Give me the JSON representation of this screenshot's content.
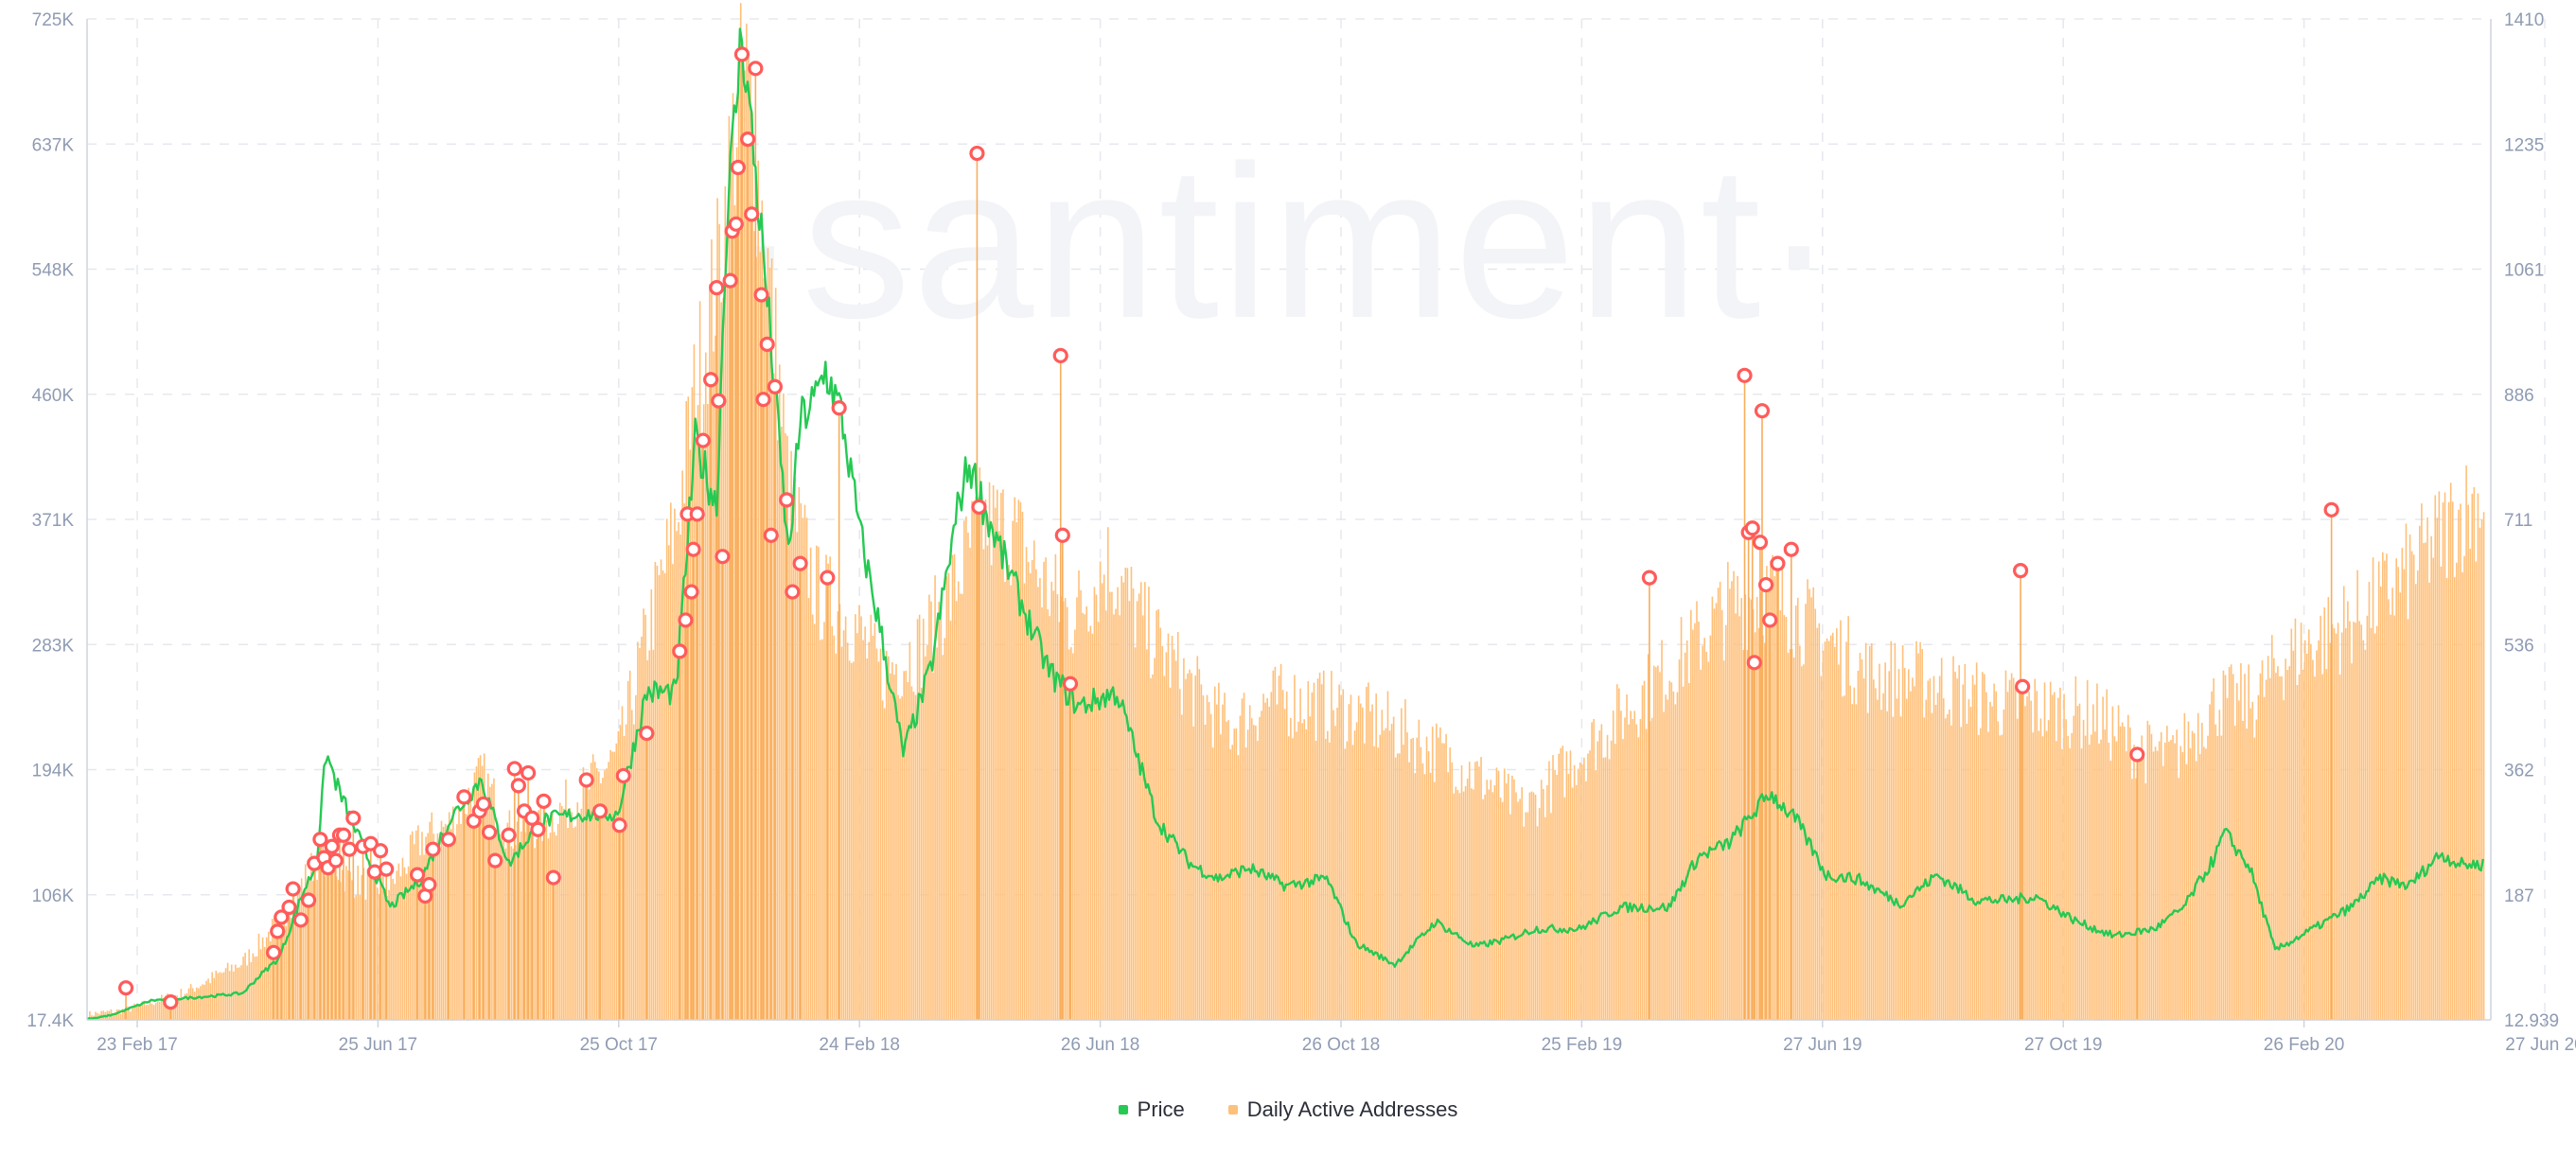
{
  "watermark": "·santiment·",
  "colors": {
    "price": "#26c953",
    "daa": "#ffc07a",
    "daa_stroke": "#f7ad5c",
    "anomaly": "#ff5b5b",
    "grid": "#e6e8ee",
    "axis_text": "#8f9bb3"
  },
  "chart_data": {
    "type": "bar+line",
    "title": "",
    "x_ticks": [
      "23 Feb 17",
      "25 Jun 17",
      "25 Oct 17",
      "24 Feb 18",
      "26 Jun 18",
      "26 Oct 18",
      "25 Feb 19",
      "27 Jun 19",
      "27 Oct 19",
      "26 Feb 20",
      "27 Jun 20"
    ],
    "y_left_ticks": [
      "725K",
      "637K",
      "548K",
      "460K",
      "371K",
      "283K",
      "194K",
      "106K",
      "17.4K"
    ],
    "y_right_ticks": [
      "1410",
      "1235",
      "1061",
      "886",
      "711",
      "536",
      "362",
      "187",
      "12.939"
    ],
    "y_left_range": [
      17400,
      725000
    ],
    "y_right_range": [
      12.939,
      1410
    ],
    "grid": true,
    "legend_position": "bottom-center",
    "series": [
      {
        "name": "Price",
        "axis": "right",
        "color": "#26c953",
        "points": [
          [
            "2017-02-10",
            13
          ],
          [
            "2017-02-23",
            20
          ],
          [
            "2017-03-15",
            40
          ],
          [
            "2017-04-10",
            45
          ],
          [
            "2017-05-01",
            50
          ],
          [
            "2017-05-10",
            75
          ],
          [
            "2017-05-20",
            100
          ],
          [
            "2017-06-01",
            190
          ],
          [
            "2017-06-08",
            230
          ],
          [
            "2017-06-13",
            385
          ],
          [
            "2017-06-20",
            330
          ],
          [
            "2017-07-01",
            260
          ],
          [
            "2017-07-16",
            170
          ],
          [
            "2017-08-01",
            210
          ],
          [
            "2017-08-15",
            290
          ],
          [
            "2017-09-01",
            350
          ],
          [
            "2017-09-15",
            230
          ],
          [
            "2017-10-01",
            290
          ],
          [
            "2017-10-20",
            300
          ],
          [
            "2017-11-10",
            300
          ],
          [
            "2017-11-25",
            470
          ],
          [
            "2017-12-10",
            470
          ],
          [
            "2017-12-20",
            820
          ],
          [
            "2017-12-31",
            730
          ],
          [
            "2018-01-05",
            1120
          ],
          [
            "2018-01-13",
            1395
          ],
          [
            "2018-01-25",
            1050
          ],
          [
            "2018-02-06",
            660
          ],
          [
            "2018-02-12",
            850
          ],
          [
            "2018-02-20",
            880
          ],
          [
            "2018-02-25",
            920
          ],
          [
            "2018-03-05",
            860
          ],
          [
            "2018-03-15",
            690
          ],
          [
            "2018-03-25",
            560
          ],
          [
            "2018-04-06",
            385
          ],
          [
            "2018-04-20",
            500
          ],
          [
            "2018-05-05",
            740
          ],
          [
            "2018-05-10",
            790
          ],
          [
            "2018-05-20",
            710
          ],
          [
            "2018-06-05",
            600
          ],
          [
            "2018-06-20",
            500
          ],
          [
            "2018-07-05",
            450
          ],
          [
            "2018-07-25",
            470
          ],
          [
            "2018-08-15",
            290
          ],
          [
            "2018-09-01",
            230
          ],
          [
            "2018-09-15",
            210
          ],
          [
            "2018-10-01",
            225
          ],
          [
            "2018-10-20",
            200
          ],
          [
            "2018-11-10",
            210
          ],
          [
            "2018-11-25",
            120
          ],
          [
            "2018-12-15",
            90
          ],
          [
            "2019-01-05",
            150
          ],
          [
            "2019-01-25",
            115
          ],
          [
            "2019-02-10",
            125
          ],
          [
            "2019-02-25",
            140
          ],
          [
            "2019-03-20",
            140
          ],
          [
            "2019-04-10",
            170
          ],
          [
            "2019-05-05",
            170
          ],
          [
            "2019-05-20",
            240
          ],
          [
            "2019-06-05",
            260
          ],
          [
            "2019-06-26",
            330
          ],
          [
            "2019-07-10",
            290
          ],
          [
            "2019-07-25",
            215
          ],
          [
            "2019-08-10",
            210
          ],
          [
            "2019-09-01",
            175
          ],
          [
            "2019-09-20",
            215
          ],
          [
            "2019-10-10",
            180
          ],
          [
            "2019-10-27",
            180
          ],
          [
            "2019-11-10",
            185
          ],
          [
            "2019-12-01",
            150
          ],
          [
            "2019-12-20",
            130
          ],
          [
            "2020-01-10",
            140
          ],
          [
            "2020-01-25",
            170
          ],
          [
            "2020-02-10",
            240
          ],
          [
            "2020-02-15",
            275
          ],
          [
            "2020-02-28",
            225
          ],
          [
            "2020-03-12",
            110
          ],
          [
            "2020-03-25",
            130
          ],
          [
            "2020-04-20",
            170
          ],
          [
            "2020-05-05",
            210
          ],
          [
            "2020-05-20",
            200
          ],
          [
            "2020-06-05",
            245
          ],
          [
            "2020-06-15",
            230
          ],
          [
            "2020-06-27",
            230
          ]
        ]
      },
      {
        "name": "Daily Active Addresses",
        "axis": "left",
        "color": "#ffc07a",
        "points": [
          [
            "2017-02-10",
            22000
          ],
          [
            "2017-03-01",
            25000
          ],
          [
            "2017-04-01",
            38000
          ],
          [
            "2017-05-01",
            60000
          ],
          [
            "2017-05-20",
            90000
          ],
          [
            "2017-06-10",
            140000
          ],
          [
            "2017-06-25",
            120000
          ],
          [
            "2017-07-15",
            115000
          ],
          [
            "2017-08-01",
            150000
          ],
          [
            "2017-08-15",
            160000
          ],
          [
            "2017-09-01",
            195000
          ],
          [
            "2017-09-15",
            155000
          ],
          [
            "2017-10-01",
            160000
          ],
          [
            "2017-10-20",
            180000
          ],
          [
            "2017-11-10",
            210000
          ],
          [
            "2017-11-25",
            300000
          ],
          [
            "2017-12-10",
            380000
          ],
          [
            "2017-12-20",
            480000
          ],
          [
            "2017-12-31",
            560000
          ],
          [
            "2018-01-10",
            680000
          ],
          [
            "2018-01-15",
            700000
          ],
          [
            "2018-01-25",
            580000
          ],
          [
            "2018-02-06",
            400000
          ],
          [
            "2018-02-20",
            330000
          ],
          [
            "2018-03-10",
            310000
          ],
          [
            "2018-03-25",
            270000
          ],
          [
            "2018-04-15",
            290000
          ],
          [
            "2018-05-01",
            330000
          ],
          [
            "2018-05-15",
            380000
          ],
          [
            "2018-06-01",
            375000
          ],
          [
            "2018-06-15",
            340000
          ],
          [
            "2018-07-01",
            310000
          ],
          [
            "2018-07-20",
            350000
          ],
          [
            "2018-08-10",
            300000
          ],
          [
            "2018-09-01",
            260000
          ],
          [
            "2018-09-20",
            230000
          ],
          [
            "2018-10-10",
            250000
          ],
          [
            "2018-11-01",
            250000
          ],
          [
            "2018-11-25",
            240000
          ],
          [
            "2018-12-15",
            230000
          ],
          [
            "2019-01-10",
            210000
          ],
          [
            "2019-02-01",
            190000
          ],
          [
            "2019-02-20",
            170000
          ],
          [
            "2019-03-15",
            205000
          ],
          [
            "2019-04-10",
            240000
          ],
          [
            "2019-05-10",
            280000
          ],
          [
            "2019-06-05",
            320000
          ],
          [
            "2019-06-27",
            330000
          ],
          [
            "2019-07-20",
            300000
          ],
          [
            "2019-08-15",
            270000
          ],
          [
            "2019-09-15",
            265000
          ],
          [
            "2019-10-15",
            250000
          ],
          [
            "2019-11-10",
            245000
          ],
          [
            "2019-12-10",
            240000
          ],
          [
            "2020-01-01",
            215000
          ],
          [
            "2020-01-20",
            210000
          ],
          [
            "2020-02-10",
            250000
          ],
          [
            "2020-03-01",
            250000
          ],
          [
            "2020-03-15",
            280000
          ],
          [
            "2020-04-10",
            300000
          ],
          [
            "2020-05-01",
            320000
          ],
          [
            "2020-05-20",
            345000
          ],
          [
            "2020-06-10",
            380000
          ],
          [
            "2020-06-27",
            400000
          ]
        ]
      }
    ],
    "anomalies_daa": [
      [
        "2017-03-02",
        40000
      ],
      [
        "2017-03-25",
        30000
      ],
      [
        "2017-05-17",
        65000
      ],
      [
        "2017-05-19",
        80000
      ],
      [
        "2017-05-21",
        90000
      ],
      [
        "2017-05-25",
        97000
      ],
      [
        "2017-05-27",
        110000
      ],
      [
        "2017-05-31",
        88000
      ],
      [
        "2017-06-04",
        102000
      ],
      [
        "2017-06-07",
        128000
      ],
      [
        "2017-06-10",
        145000
      ],
      [
        "2017-06-12",
        132000
      ],
      [
        "2017-06-14",
        125000
      ],
      [
        "2017-06-16",
        140000
      ],
      [
        "2017-06-18",
        130000
      ],
      [
        "2017-06-20",
        148000
      ],
      [
        "2017-06-22",
        148000
      ],
      [
        "2017-06-25",
        138000
      ],
      [
        "2017-06-27",
        160000
      ],
      [
        "2017-07-02",
        140000
      ],
      [
        "2017-07-06",
        142000
      ],
      [
        "2017-07-08",
        122000
      ],
      [
        "2017-07-11",
        137000
      ],
      [
        "2017-07-14",
        124000
      ],
      [
        "2017-07-30",
        120000
      ],
      [
        "2017-08-03",
        105000
      ],
      [
        "2017-08-05",
        113000
      ],
      [
        "2017-08-07",
        138000
      ],
      [
        "2017-08-15",
        145000
      ],
      [
        "2017-08-23",
        175000
      ],
      [
        "2017-08-28",
        158000
      ],
      [
        "2017-08-31",
        165000
      ],
      [
        "2017-09-02",
        170000
      ],
      [
        "2017-09-05",
        150000
      ],
      [
        "2017-09-08",
        130000
      ],
      [
        "2017-09-15",
        148000
      ],
      [
        "2017-09-18",
        195000
      ],
      [
        "2017-09-20",
        183000
      ],
      [
        "2017-09-23",
        165000
      ],
      [
        "2017-09-25",
        192000
      ],
      [
        "2017-09-27",
        160000
      ],
      [
        "2017-09-30",
        152000
      ],
      [
        "2017-10-03",
        172000
      ],
      [
        "2017-10-08",
        118000
      ],
      [
        "2017-10-25",
        187000
      ],
      [
        "2017-11-01",
        165000
      ],
      [
        "2017-11-11",
        155000
      ],
      [
        "2017-11-13",
        190000
      ],
      [
        "2017-11-25",
        220000
      ],
      [
        "2017-12-12",
        278000
      ],
      [
        "2017-12-15",
        300000
      ],
      [
        "2017-12-16",
        375000
      ],
      [
        "2017-12-18",
        320000
      ],
      [
        "2017-12-19",
        350000
      ],
      [
        "2017-12-21",
        375000
      ],
      [
        "2017-12-24",
        427000
      ],
      [
        "2017-12-28",
        470000
      ],
      [
        "2017-12-31",
        535000
      ],
      [
        "2018-01-01",
        455000
      ],
      [
        "2018-01-03",
        345000
      ],
      [
        "2018-01-07",
        540000
      ],
      [
        "2018-01-08",
        575000
      ],
      [
        "2018-01-10",
        580000
      ],
      [
        "2018-01-11",
        620000
      ],
      [
        "2018-01-13",
        700000
      ],
      [
        "2018-01-16",
        640000
      ],
      [
        "2018-01-18",
        587000
      ],
      [
        "2018-01-20",
        690000
      ],
      [
        "2018-01-23",
        530000
      ],
      [
        "2018-01-24",
        456000
      ],
      [
        "2018-01-26",
        495000
      ],
      [
        "2018-01-28",
        360000
      ],
      [
        "2018-01-30",
        465000
      ],
      [
        "2018-02-05",
        385000
      ],
      [
        "2018-02-08",
        320000
      ],
      [
        "2018-02-12",
        340000
      ],
      [
        "2018-02-26",
        330000
      ],
      [
        "2018-03-04",
        450000
      ],
      [
        "2018-05-14",
        630000
      ],
      [
        "2018-05-15",
        380000
      ],
      [
        "2018-06-26",
        487000
      ],
      [
        "2018-06-27",
        360000
      ],
      [
        "2018-07-01",
        255000
      ],
      [
        "2019-04-25",
        330000
      ],
      [
        "2019-06-13",
        473000
      ],
      [
        "2019-06-15",
        362000
      ],
      [
        "2019-06-17",
        365000
      ],
      [
        "2019-06-18",
        270000
      ],
      [
        "2019-06-21",
        355000
      ],
      [
        "2019-06-22",
        448000
      ],
      [
        "2019-06-24",
        325000
      ],
      [
        "2019-06-26",
        300000
      ],
      [
        "2019-06-30",
        340000
      ],
      [
        "2019-07-07",
        350000
      ],
      [
        "2019-11-02",
        335000
      ],
      [
        "2019-11-03",
        253000
      ],
      [
        "2020-01-01",
        205000
      ],
      [
        "2020-04-10",
        378000
      ]
    ]
  },
  "legend": [
    {
      "label": "Price",
      "color": "#26c953"
    },
    {
      "label": "Daily Active Addresses",
      "color": "#ffc07a"
    }
  ]
}
